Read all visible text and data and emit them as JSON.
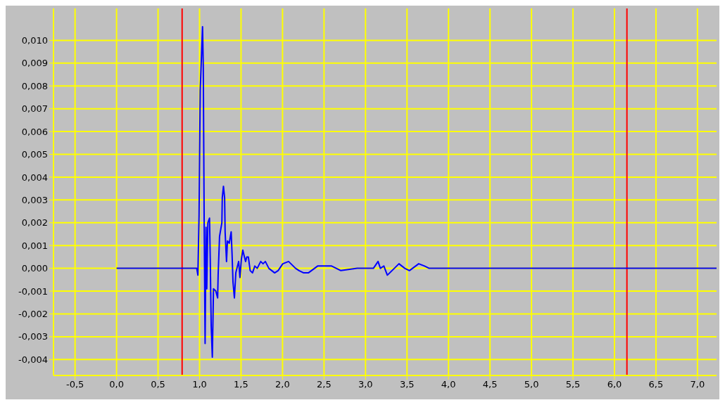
{
  "chart_data": {
    "type": "line",
    "grid": true,
    "marker": "none",
    "line_style": "solid",
    "xlim": [
      -0.76,
      7.23
    ],
    "ylim": [
      -0.0047,
      0.0114
    ],
    "xticks": [
      {
        "value": -0.5,
        "label": "-0,5"
      },
      {
        "value": 0,
        "label": "0,0"
      },
      {
        "value": 0.5,
        "label": "0,5"
      },
      {
        "value": 1,
        "label": "1,0"
      },
      {
        "value": 1.5,
        "label": "1,5"
      },
      {
        "value": 2,
        "label": "2,0"
      },
      {
        "value": 2.5,
        "label": "2,5"
      },
      {
        "value": 3,
        "label": "3,0"
      },
      {
        "value": 3.5,
        "label": "3,5"
      },
      {
        "value": 4,
        "label": "4,0"
      },
      {
        "value": 4.5,
        "label": "4,5"
      },
      {
        "value": 5,
        "label": "5,0"
      },
      {
        "value": 5.5,
        "label": "5,5"
      },
      {
        "value": 6,
        "label": "6,0"
      },
      {
        "value": 6.5,
        "label": "6,5"
      },
      {
        "value": 7,
        "label": "7,0"
      }
    ],
    "yticks": [
      {
        "value": -0.004,
        "label": "-0,004"
      },
      {
        "value": -0.003,
        "label": "-0,003"
      },
      {
        "value": -0.002,
        "label": "-0,002"
      },
      {
        "value": -0.001,
        "label": "-0,001"
      },
      {
        "value": 0,
        "label": "0,000"
      },
      {
        "value": 0.001,
        "label": "0,001"
      },
      {
        "value": 0.002,
        "label": "0,002"
      },
      {
        "value": 0.003,
        "label": "0,003"
      },
      {
        "value": 0.004,
        "label": "0,004"
      },
      {
        "value": 0.005,
        "label": "0,005"
      },
      {
        "value": 0.006,
        "label": "0,006"
      },
      {
        "value": 0.007,
        "label": "0,007"
      },
      {
        "value": 0.008,
        "label": "0,008"
      },
      {
        "value": 0.009,
        "label": "0,009"
      },
      {
        "value": 0.01,
        "label": "0,010"
      }
    ],
    "ref_lines": [
      {
        "axis": "x",
        "value": 0.79,
        "color": "#ff0000"
      },
      {
        "axis": "x",
        "value": 6.15,
        "color": "#ff0000"
      }
    ],
    "series": [
      {
        "color": "#0000ff",
        "x": [
          0,
          0.5,
          0.966,
          0.98,
          0.994,
          1.008,
          1.036,
          1.045,
          1.056,
          1.067,
          1.078,
          1.087,
          1.1,
          1.12,
          1.129,
          1.14,
          1.154,
          1.168,
          1.196,
          1.218,
          1.224,
          1.241,
          1.269,
          1.274,
          1.288,
          1.302,
          1.308,
          1.325,
          1.336,
          1.358,
          1.381,
          1.392,
          1.403,
          1.42,
          1.437,
          1.457,
          1.471,
          1.487,
          1.504,
          1.521,
          1.541,
          1.555,
          1.569,
          1.588,
          1.61,
          1.638,
          1.666,
          1.695,
          1.737,
          1.765,
          1.793,
          1.835,
          1.905,
          1.947,
          2.003,
          2.073,
          2.157,
          2.199,
          2.255,
          2.311,
          2.423,
          2.591,
          2.703,
          2.899,
          3.095,
          3.151,
          3.179,
          3.221,
          3.263,
          3.319,
          3.403,
          3.473,
          3.529,
          3.641,
          3.711,
          3.767,
          4.0,
          5.0,
          6.0,
          7.23
        ],
        "values": [
          0,
          0,
          0,
          -0.0003,
          0.0023,
          0.0078,
          0.0106,
          0.0088,
          0.0018,
          -0.0033,
          0.0018,
          -0.0009,
          0.002,
          0.0022,
          0.0004,
          -0.0025,
          -0.0039,
          -0.0009,
          -0.001,
          -0.0013,
          -0.0003,
          0.0014,
          0.002,
          0.0031,
          0.0036,
          0.0031,
          0.0016,
          0.0003,
          0.0012,
          0.0011,
          0.0016,
          0.0006,
          -0.0006,
          -0.0013,
          -0.0002,
          0.0001,
          0.0003,
          -0.0004,
          0.0004,
          0.0008,
          0.0005,
          0.0003,
          0.0005,
          0.0005,
          -0.0001,
          -0.0002,
          0.0001,
          0,
          0.0003,
          0.0002,
          0.0003,
          0,
          -0.0002,
          -0.0001,
          0.0002,
          0.0003,
          0,
          -0.0001,
          -0.0002,
          -0.0002,
          0.0001,
          0.0001,
          -0.0001,
          0,
          0,
          0.0003,
          0,
          0.0001,
          -0.0003,
          -0.0001,
          0.0002,
          0,
          -0.0001,
          0.0002,
          0.0001,
          0,
          0,
          0,
          0,
          0
        ]
      }
    ]
  }
}
